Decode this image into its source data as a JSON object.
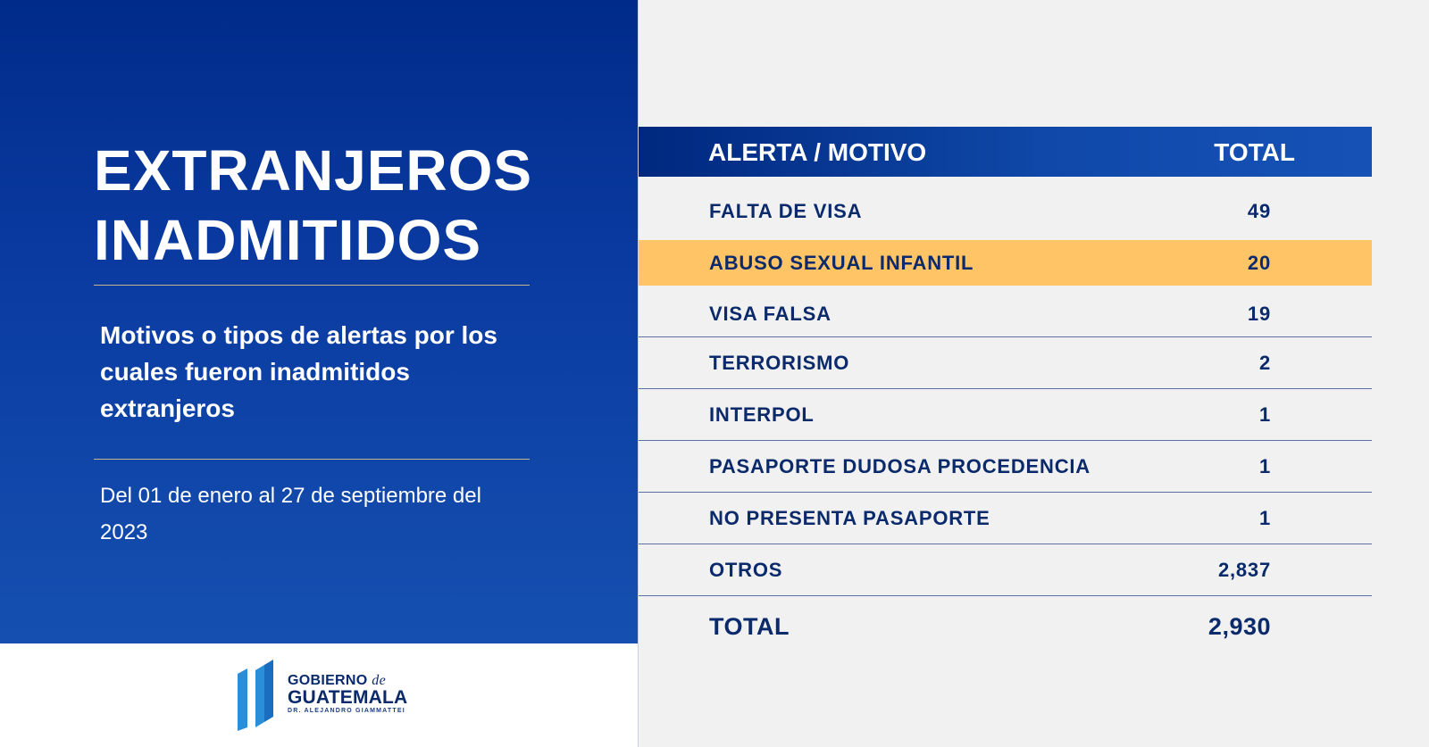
{
  "left_panel": {
    "title_line1": "EXTRANJEROS",
    "title_line2": "INADMITIDOS",
    "subtitle": "Motivos o tipos de alertas por los cuales fueron inadmitidos extranjeros",
    "date_range": "Del 01 de enero al 27 de septiembre del 2023"
  },
  "logo": {
    "line1": "GOBIERNO",
    "line1_connector": "de",
    "line2": "GUATEMALA",
    "line3": "DR. ALEJANDRO GIAMMATTEI"
  },
  "table": {
    "header_motivo": "ALERTA / MOTIVO",
    "header_total": "TOTAL",
    "rows": [
      {
        "motivo": "FALTA DE VISA",
        "total": "49"
      },
      {
        "motivo": "ABUSO SEXUAL INFANTIL",
        "total": "20"
      },
      {
        "motivo": "VISA FALSA",
        "total": "19"
      },
      {
        "motivo": "TERRORISMO",
        "total": "2"
      },
      {
        "motivo": "INTERPOL",
        "total": "1"
      },
      {
        "motivo": "PASAPORTE DUDOSA PROCEDENCIA",
        "total": "1"
      },
      {
        "motivo": "NO PRESENTA PASAPORTE",
        "total": "1"
      },
      {
        "motivo": "OTROS",
        "total": "2,837"
      }
    ],
    "total_label": "TOTAL",
    "total_value": "2,930"
  },
  "colors": {
    "primary_blue": "#0a3aa0",
    "dark_navy_text": "#0a2a6b",
    "highlight_row": "#ffc466",
    "background": "#f1f1f1",
    "logo_blue": "#1e88d6"
  }
}
